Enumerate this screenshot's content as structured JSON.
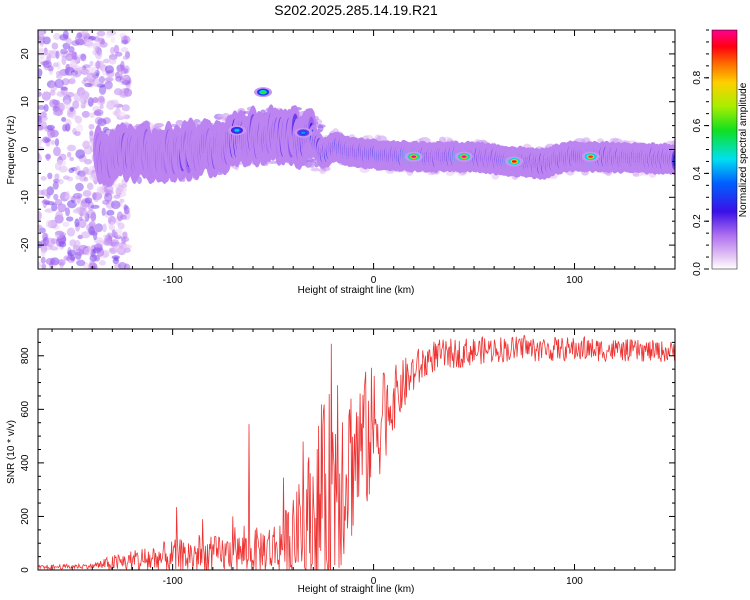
{
  "title": "S202.2025.285.14.19.R21",
  "chart_data": [
    {
      "type": "heatmap",
      "xlabel": "Height of straight line (km)",
      "ylabel": "Frequency (Hz)",
      "xlim": [
        -167,
        150
      ],
      "ylim": [
        -25,
        25
      ],
      "xticks": [
        -100,
        0,
        100
      ],
      "yticks": [
        -20,
        -10,
        0,
        10,
        20
      ],
      "colorbar": {
        "label": "Normalized spectral amplitude",
        "range": [
          0,
          1
        ],
        "ticks": [
          0.0,
          0.2,
          0.4,
          0.6,
          0.8
        ]
      },
      "ridge": [
        {
          "x": -135,
          "y": -1.5
        },
        {
          "x": -120,
          "y": -0.5
        },
        {
          "x": -100,
          "y": -0.5
        },
        {
          "x": -80,
          "y": 0.5
        },
        {
          "x": -60,
          "y": 3
        },
        {
          "x": -45,
          "y": 3
        },
        {
          "x": -30,
          "y": 2
        },
        {
          "x": -25,
          "y": -1
        },
        {
          "x": -20,
          "y": 0.5
        },
        {
          "x": -10,
          "y": -0.5
        },
        {
          "x": 0,
          "y": -1
        },
        {
          "x": 20,
          "y": -1.5
        },
        {
          "x": 50,
          "y": -1.5
        },
        {
          "x": 70,
          "y": -2.5
        },
        {
          "x": 85,
          "y": -3
        },
        {
          "x": 95,
          "y": -1.5
        },
        {
          "x": 110,
          "y": -1.5
        },
        {
          "x": 150,
          "y": -2
        }
      ],
      "blobs": [
        {
          "x": -55,
          "y": 12,
          "amp": 0.6
        },
        {
          "x": -68,
          "y": 4,
          "amp": 0.45
        },
        {
          "x": -35,
          "y": 3.5,
          "amp": 0.4
        },
        {
          "x": 20,
          "y": -1.5,
          "amp": 1.0
        },
        {
          "x": 45,
          "y": -1.5,
          "amp": 1.0
        },
        {
          "x": 70,
          "y": -2.5,
          "amp": 0.95
        },
        {
          "x": 108,
          "y": -1.5,
          "amp": 0.9
        }
      ]
    },
    {
      "type": "line",
      "xlabel": "Height of straight line (km)",
      "ylabel": "SNR (10 * v/v)",
      "xlim": [
        -167,
        150
      ],
      "ylim": [
        0,
        900
      ],
      "xticks": [
        -100,
        0,
        100
      ],
      "yticks": [
        0,
        200,
        400,
        600,
        800
      ],
      "color": "#ee3333",
      "envelope": [
        {
          "x": -167,
          "base": 10,
          "amp": 8
        },
        {
          "x": -140,
          "base": 15,
          "amp": 10
        },
        {
          "x": -130,
          "base": 25,
          "amp": 30
        },
        {
          "x": -110,
          "base": 40,
          "amp": 60
        },
        {
          "x": -90,
          "base": 55,
          "amp": 70
        },
        {
          "x": -70,
          "base": 60,
          "amp": 70
        },
        {
          "x": -50,
          "base": 80,
          "amp": 100
        },
        {
          "x": -40,
          "base": 120,
          "amp": 140
        },
        {
          "x": -30,
          "base": 200,
          "amp": 300
        },
        {
          "x": -20,
          "base": 320,
          "amp": 400
        },
        {
          "x": -10,
          "base": 420,
          "amp": 300
        },
        {
          "x": 0,
          "base": 520,
          "amp": 250
        },
        {
          "x": 10,
          "base": 640,
          "amp": 120
        },
        {
          "x": 20,
          "base": 740,
          "amp": 80
        },
        {
          "x": 30,
          "base": 800,
          "amp": 60
        },
        {
          "x": 60,
          "base": 825,
          "amp": 50
        },
        {
          "x": 100,
          "base": 825,
          "amp": 45
        },
        {
          "x": 150,
          "base": 815,
          "amp": 40
        }
      ],
      "spikes": [
        {
          "x": -98,
          "y": 235
        },
        {
          "x": -85,
          "y": 190
        },
        {
          "x": -70,
          "y": 200
        },
        {
          "x": -62,
          "y": 545
        },
        {
          "x": -45,
          "y": 345
        },
        {
          "x": -35,
          "y": 480
        },
        {
          "x": -21,
          "y": 845
        },
        {
          "x": -18,
          "y": 690
        },
        {
          "x": -12,
          "y": 600
        },
        {
          "x": -5,
          "y": 530
        },
        {
          "x": 5,
          "y": 735
        },
        {
          "x": 75,
          "y": 875
        },
        {
          "x": 105,
          "y": 870
        }
      ]
    }
  ]
}
